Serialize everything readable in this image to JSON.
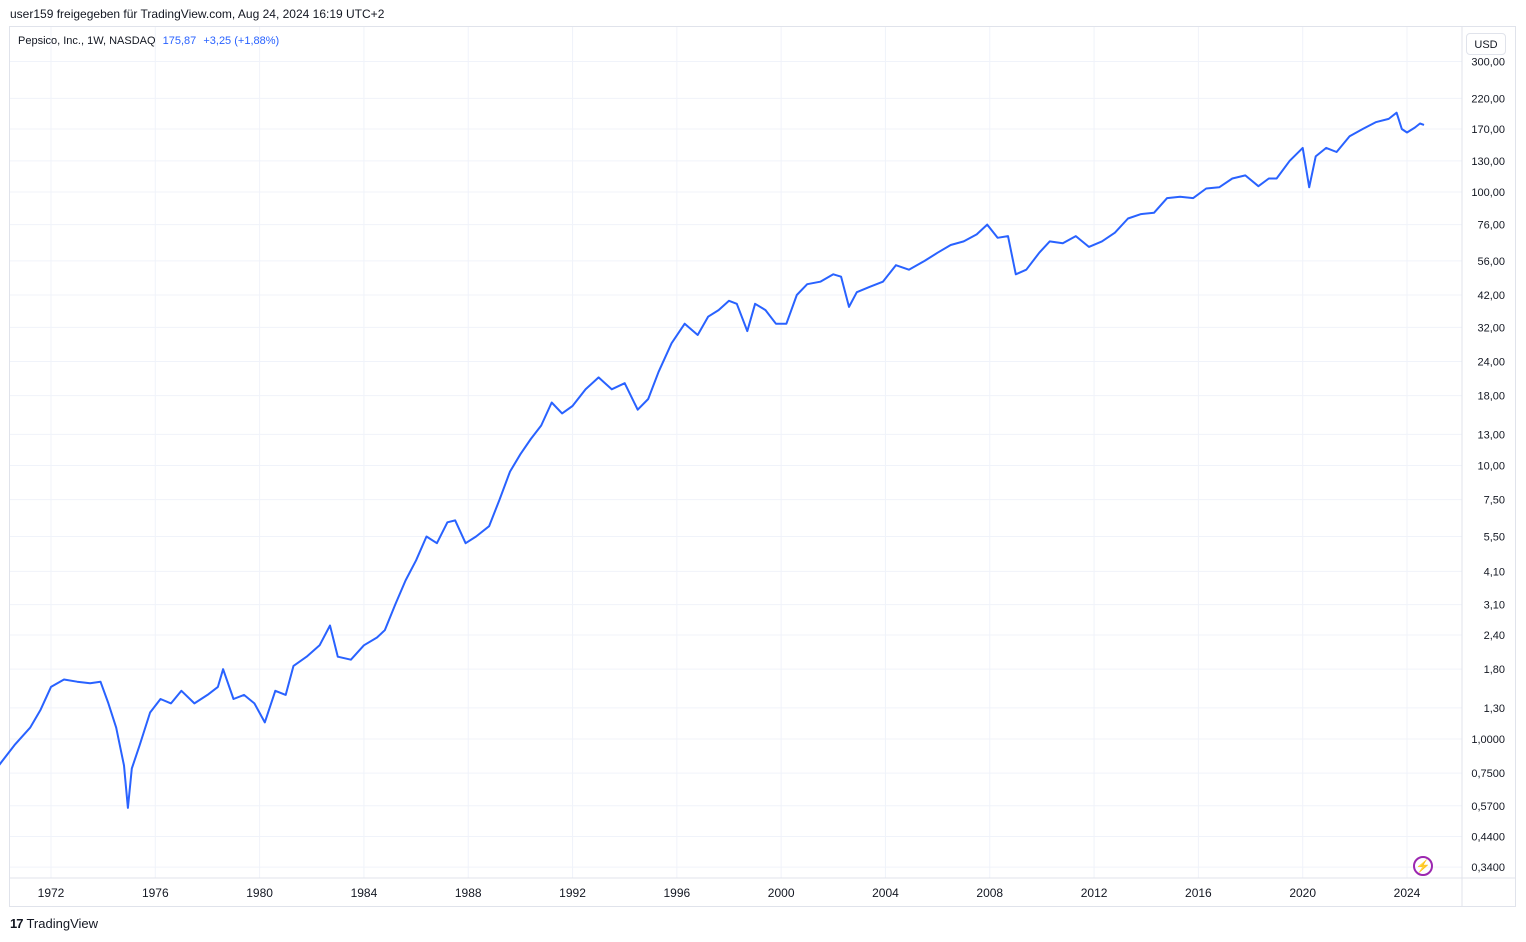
{
  "header": {
    "caption": "user159 freigegeben für TradingView.com, Aug 24, 2024 16:19 UTC+2"
  },
  "legend": {
    "symbol": "Pepsico, Inc., 1W, NASDAQ",
    "price": "175,87",
    "change": "+3,25 (+1,88%)"
  },
  "currency_button": "USD",
  "footer": {
    "brand": "TradingView",
    "logo_icon": "tradingview-logo-icon"
  },
  "colors": {
    "line": "#2962ff",
    "grid": "#f0f3fa",
    "border": "#e0e3eb",
    "bolt": "#9c27b0"
  },
  "chart_data": {
    "type": "line",
    "y_scale": "log",
    "grid": true,
    "x_ticks": [
      "1972",
      "1976",
      "1980",
      "1984",
      "1988",
      "1992",
      "1996",
      "2000",
      "2004",
      "2008",
      "2012",
      "2016",
      "2020",
      "2024"
    ],
    "y_ticks": [
      "300,00",
      "220,00",
      "170,00",
      "130,00",
      "100,00",
      "76,00",
      "56,00",
      "42,00",
      "32,00",
      "24,00",
      "18,00",
      "13,00",
      "10,00",
      "7,50",
      "5,50",
      "4,10",
      "3,10",
      "2,40",
      "1,80",
      "1,30",
      "1,0000",
      "0,7500",
      "0,5700",
      "0,4400",
      "0,3400"
    ],
    "series": [
      {
        "values": [
          [
            1970.0,
            0.8
          ],
          [
            1970.6,
            0.95
          ],
          [
            1971.2,
            1.1
          ],
          [
            1971.6,
            1.28
          ],
          [
            1972.0,
            1.55
          ],
          [
            1972.5,
            1.65
          ],
          [
            1973.0,
            1.62
          ],
          [
            1973.5,
            1.6
          ],
          [
            1973.9,
            1.62
          ],
          [
            1974.2,
            1.35
          ],
          [
            1974.5,
            1.1
          ],
          [
            1974.8,
            0.8
          ],
          [
            1974.95,
            0.56
          ],
          [
            1975.1,
            0.78
          ],
          [
            1975.4,
            0.95
          ],
          [
            1975.8,
            1.25
          ],
          [
            1976.2,
            1.4
          ],
          [
            1976.6,
            1.35
          ],
          [
            1977.0,
            1.5
          ],
          [
            1977.5,
            1.35
          ],
          [
            1978.0,
            1.45
          ],
          [
            1978.4,
            1.55
          ],
          [
            1978.6,
            1.8
          ],
          [
            1979.0,
            1.4
          ],
          [
            1979.4,
            1.45
          ],
          [
            1979.8,
            1.35
          ],
          [
            1980.2,
            1.15
          ],
          [
            1980.6,
            1.5
          ],
          [
            1981.0,
            1.45
          ],
          [
            1981.3,
            1.85
          ],
          [
            1981.8,
            2.0
          ],
          [
            1982.3,
            2.2
          ],
          [
            1982.7,
            2.6
          ],
          [
            1983.0,
            2.0
          ],
          [
            1983.5,
            1.95
          ],
          [
            1984.0,
            2.2
          ],
          [
            1984.5,
            2.35
          ],
          [
            1984.8,
            2.5
          ],
          [
            1985.2,
            3.1
          ],
          [
            1985.6,
            3.8
          ],
          [
            1986.0,
            4.5
          ],
          [
            1986.4,
            5.5
          ],
          [
            1986.8,
            5.2
          ],
          [
            1987.2,
            6.2
          ],
          [
            1987.5,
            6.3
          ],
          [
            1987.9,
            5.2
          ],
          [
            1988.3,
            5.5
          ],
          [
            1988.8,
            6.0
          ],
          [
            1989.2,
            7.5
          ],
          [
            1989.6,
            9.5
          ],
          [
            1990.0,
            11.0
          ],
          [
            1990.4,
            12.5
          ],
          [
            1990.8,
            14.0
          ],
          [
            1991.2,
            17.0
          ],
          [
            1991.6,
            15.5
          ],
          [
            1992.0,
            16.5
          ],
          [
            1992.5,
            19.0
          ],
          [
            1993.0,
            21.0
          ],
          [
            1993.5,
            19.0
          ],
          [
            1994.0,
            20.0
          ],
          [
            1994.5,
            16.0
          ],
          [
            1994.9,
            17.5
          ],
          [
            1995.3,
            22.0
          ],
          [
            1995.8,
            28.0
          ],
          [
            1996.3,
            33.0
          ],
          [
            1996.8,
            30.0
          ],
          [
            1997.2,
            35.0
          ],
          [
            1997.6,
            37.0
          ],
          [
            1998.0,
            40.0
          ],
          [
            1998.3,
            39.0
          ],
          [
            1998.7,
            31.0
          ],
          [
            1999.0,
            39.0
          ],
          [
            1999.4,
            37.0
          ],
          [
            1999.8,
            33.0
          ],
          [
            2000.2,
            33.0
          ],
          [
            2000.6,
            42.0
          ],
          [
            2001.0,
            46.0
          ],
          [
            2001.5,
            47.0
          ],
          [
            2002.0,
            50.0
          ],
          [
            2002.3,
            49.0
          ],
          [
            2002.6,
            38.0
          ],
          [
            2002.9,
            43.0
          ],
          [
            2003.4,
            45.0
          ],
          [
            2003.9,
            47.0
          ],
          [
            2004.4,
            54.0
          ],
          [
            2004.9,
            52.0
          ],
          [
            2005.5,
            56.0
          ],
          [
            2006.0,
            60.0
          ],
          [
            2006.5,
            64.0
          ],
          [
            2007.0,
            66.0
          ],
          [
            2007.5,
            70.0
          ],
          [
            2007.9,
            76.0
          ],
          [
            2008.3,
            68.0
          ],
          [
            2008.7,
            69.0
          ],
          [
            2009.0,
            50.0
          ],
          [
            2009.4,
            52.0
          ],
          [
            2009.9,
            60.0
          ],
          [
            2010.3,
            66.0
          ],
          [
            2010.8,
            65.0
          ],
          [
            2011.3,
            69.0
          ],
          [
            2011.8,
            63.0
          ],
          [
            2012.3,
            66.0
          ],
          [
            2012.8,
            71.0
          ],
          [
            2013.3,
            80.0
          ],
          [
            2013.8,
            83.0
          ],
          [
            2014.3,
            84.0
          ],
          [
            2014.8,
            95.0
          ],
          [
            2015.3,
            96.0
          ],
          [
            2015.8,
            95.0
          ],
          [
            2016.3,
            103.0
          ],
          [
            2016.8,
            104.0
          ],
          [
            2017.3,
            112.0
          ],
          [
            2017.8,
            115.0
          ],
          [
            2018.3,
            105.0
          ],
          [
            2018.7,
            112.0
          ],
          [
            2019.0,
            112.0
          ],
          [
            2019.5,
            130.0
          ],
          [
            2020.0,
            145.0
          ],
          [
            2020.25,
            104.0
          ],
          [
            2020.5,
            135.0
          ],
          [
            2020.9,
            145.0
          ],
          [
            2021.3,
            140.0
          ],
          [
            2021.8,
            160.0
          ],
          [
            2022.3,
            170.0
          ],
          [
            2022.8,
            180.0
          ],
          [
            2023.3,
            185.0
          ],
          [
            2023.6,
            195.0
          ],
          [
            2023.8,
            170.0
          ],
          [
            2024.0,
            165.0
          ],
          [
            2024.3,
            172.0
          ],
          [
            2024.5,
            178.0
          ],
          [
            2024.65,
            175.87
          ]
        ]
      }
    ]
  }
}
